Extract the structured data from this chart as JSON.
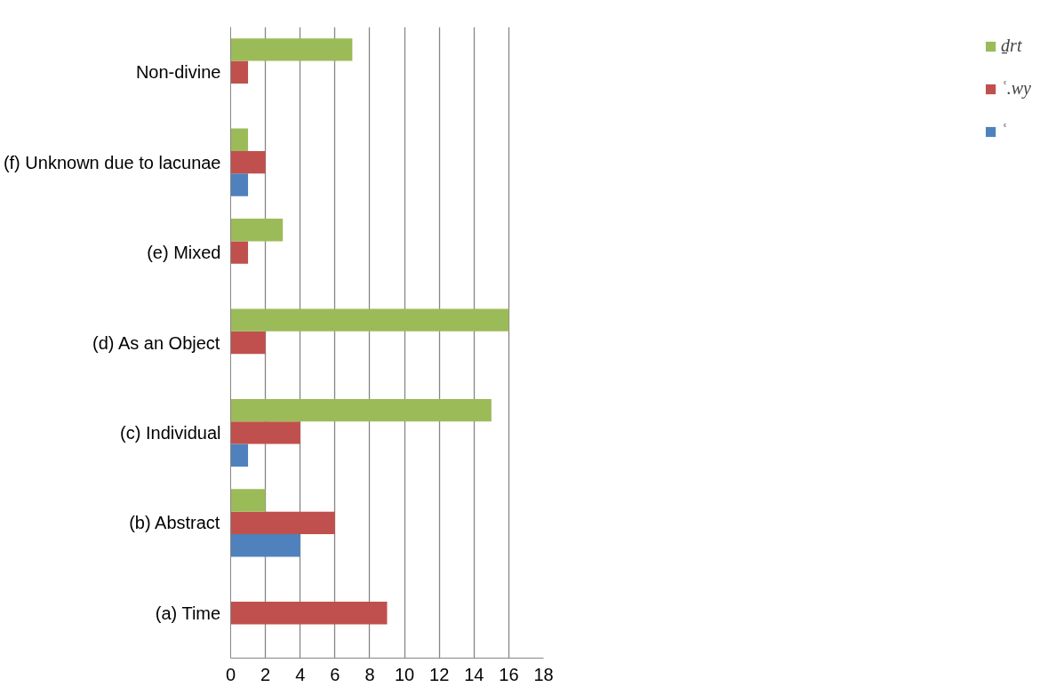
{
  "chart_data": {
    "type": "bar",
    "orientation": "horizontal",
    "categories": [
      "Non-divine",
      "(f) Unknown due to lacunae",
      "(e) Mixed",
      "(d) As an Object",
      "(c) Individual",
      "(b) Abstract",
      "(a) Time"
    ],
    "series": [
      {
        "name": "ʿ",
        "color": "#4f81bd",
        "values": [
          null,
          1,
          null,
          null,
          1,
          4,
          null
        ]
      },
      {
        "name": "ʿ.wy",
        "color": "#c0504d",
        "values": [
          1,
          2,
          1,
          2,
          4,
          6,
          9
        ]
      },
      {
        "name": "ḏrt",
        "color": "#9bbb59",
        "values": [
          7,
          1,
          3,
          16,
          15,
          2,
          null
        ]
      }
    ],
    "xlim": [
      0,
      18
    ],
    "xticks": [
      0,
      2,
      4,
      6,
      8,
      10,
      12,
      14,
      16,
      18
    ],
    "grid": "x",
    "legend": "right"
  }
}
